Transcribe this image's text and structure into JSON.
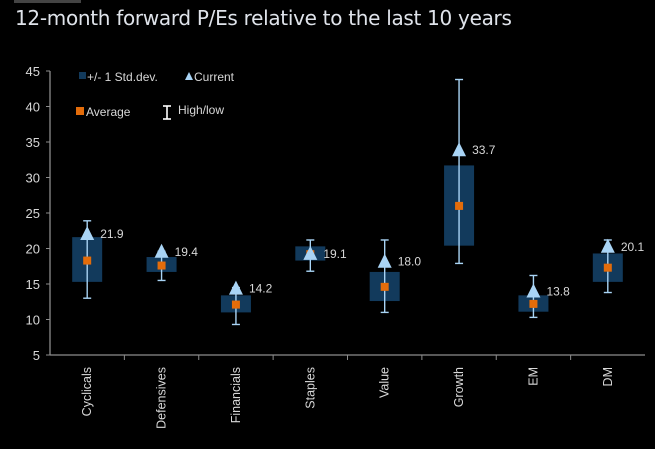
{
  "title": "12-month forward P/Es relative to the last 10 years",
  "colors": {
    "background": "#000000",
    "box": "#123a5c",
    "current": "#a9d4f5",
    "average": "#e36c0a",
    "whisker": "#a9d4f5",
    "axis": "#8c8c8c",
    "text": "#d8d8d8"
  },
  "chart_data": {
    "type": "boxplot",
    "title": "12-month forward P/Es relative to the last 10 years",
    "xlabel": "",
    "ylabel": "",
    "ylim": [
      5,
      45
    ],
    "yticks": [
      5,
      10,
      15,
      20,
      25,
      30,
      35,
      40,
      45
    ],
    "grid": false,
    "legend": {
      "placement": "top-left",
      "entries": [
        {
          "key": "std",
          "label": "+/- 1 Std.dev."
        },
        {
          "key": "current",
          "label": "Current"
        },
        {
          "key": "average",
          "label": "Average"
        },
        {
          "key": "highlow",
          "label": "High/low"
        }
      ]
    },
    "categories": [
      "Cyclicals",
      "Defensives",
      "Financials",
      "Staples",
      "Value",
      "Growth",
      "EM",
      "DM"
    ],
    "series": [
      {
        "name": "Current",
        "values": [
          21.9,
          19.4,
          14.2,
          19.1,
          18.0,
          33.7,
          13.8,
          20.1
        ]
      },
      {
        "name": "Average",
        "values": [
          18.3,
          17.6,
          12.1,
          19.2,
          14.6,
          26.0,
          12.2,
          17.3
        ]
      },
      {
        "name": "+1 Std.dev.",
        "values": [
          21.6,
          18.8,
          13.4,
          20.3,
          16.7,
          31.7,
          13.4,
          19.3
        ]
      },
      {
        "name": "-1 Std.dev.",
        "values": [
          15.3,
          16.7,
          11.0,
          18.3,
          12.6,
          20.4,
          11.1,
          15.3
        ]
      },
      {
        "name": "High",
        "values": [
          23.9,
          19.6,
          14.5,
          21.2,
          21.2,
          43.8,
          16.2,
          21.2
        ]
      },
      {
        "name": "Low",
        "values": [
          13.0,
          15.5,
          9.3,
          16.8,
          11.0,
          17.9,
          10.3,
          13.8
        ]
      }
    ],
    "data_labels": [
      "21.9",
      "19.4",
      "14.2",
      "19.1",
      "18.0",
      "33.7",
      "13.8",
      "20.1"
    ]
  }
}
